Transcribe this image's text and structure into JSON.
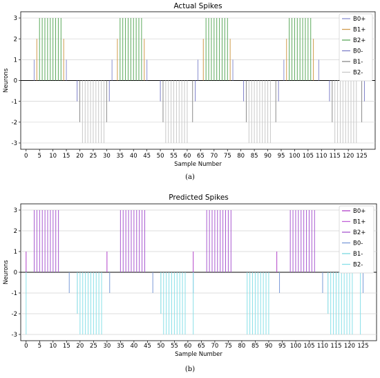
{
  "colors": {
    "B0+": "#8a8fd0",
    "B1+": "#d09a4a",
    "B2+": "#5aa85a",
    "B0-": "#7d7fc8",
    "B1-": "#8a8a8a",
    "B2-": "#c8c8c8",
    "pred_B0+": "#b040c8",
    "pred_B1+": "#c060d8",
    "pred_B2+": "#a858d0",
    "pred_B0-": "#7a9ad8",
    "pred_B1-": "#7ad8e0",
    "pred_B2-": "#88e0e8"
  },
  "chart_data": [
    {
      "type": "event-raster",
      "caption": "(a)",
      "title": "Actual Spikes",
      "xlabel": "Sample Number",
      "ylabel": "Neurons",
      "xlim": [
        -2,
        130
      ],
      "ylim": [
        -3.3,
        3.3
      ],
      "xticks": [
        0,
        5,
        10,
        15,
        20,
        25,
        30,
        35,
        40,
        45,
        50,
        55,
        60,
        65,
        70,
        75,
        80,
        85,
        90,
        95,
        100,
        105,
        110,
        115,
        120,
        125
      ],
      "yticks": [
        3,
        2,
        1,
        0,
        -1,
        -2,
        -3
      ],
      "grid": "horizontal",
      "legend_position": "top-right",
      "series": [
        {
          "name": "B0+",
          "color_key": "B0+",
          "level": 1,
          "times": [
            3,
            15,
            32,
            45,
            64,
            77,
            96,
            109
          ]
        },
        {
          "name": "B1+",
          "color_key": "B1+",
          "level": 2,
          "times": [
            4,
            14,
            34,
            44,
            66,
            76,
            97,
            107
          ]
        },
        {
          "name": "B2+",
          "color_key": "B2+",
          "level": 3,
          "times": [
            5,
            6,
            7,
            8,
            9,
            10,
            11,
            12,
            13,
            35,
            36,
            37,
            38,
            39,
            40,
            41,
            42,
            43,
            67,
            68,
            69,
            70,
            71,
            72,
            73,
            74,
            75,
            98,
            99,
            100,
            101,
            102,
            103,
            104,
            105,
            106
          ]
        },
        {
          "name": "B0-",
          "color_key": "B0-",
          "level": -1,
          "times": [
            19,
            31,
            50,
            63,
            81,
            94,
            113,
            126
          ]
        },
        {
          "name": "B1-",
          "color_key": "B1-",
          "level": -2,
          "times": [
            20,
            30,
            51,
            62,
            82,
            93,
            114,
            125
          ]
        },
        {
          "name": "B2-",
          "color_key": "B2-",
          "level": -3,
          "times": [
            21,
            22,
            23,
            24,
            25,
            26,
            27,
            28,
            29,
            52,
            53,
            54,
            55,
            56,
            57,
            58,
            59,
            60,
            83,
            84,
            85,
            86,
            87,
            88,
            89,
            90,
            91,
            115,
            116,
            117,
            118,
            119,
            120,
            121,
            122,
            123
          ]
        }
      ]
    },
    {
      "type": "event-raster",
      "caption": "(b)",
      "title": "Predicted Spikes",
      "xlabel": "Sample Number",
      "ylabel": "Neurons",
      "xlim": [
        -2,
        130
      ],
      "ylim": [
        -3.3,
        3.3
      ],
      "xticks": [
        0,
        5,
        10,
        15,
        20,
        25,
        30,
        35,
        40,
        45,
        50,
        55,
        60,
        65,
        70,
        75,
        80,
        85,
        90,
        95,
        100,
        105,
        110,
        115,
        120,
        125
      ],
      "yticks": [
        3,
        2,
        1,
        0,
        -1,
        -2,
        -3
      ],
      "grid": "horizontal",
      "legend_position": "top-right",
      "series": [
        {
          "name": "B0+",
          "color_key": "pred_B0+",
          "level": 1,
          "times": [
            0,
            30,
            62,
            93,
            125
          ]
        },
        {
          "name": "B1+",
          "color_key": "pred_B1+",
          "level": 2,
          "times": []
        },
        {
          "name": "B2+",
          "color_key": "pred_B2+",
          "level": 3,
          "times": [
            3,
            4,
            5,
            6,
            7,
            8,
            9,
            10,
            11,
            12,
            35,
            36,
            37,
            38,
            39,
            40,
            41,
            42,
            43,
            44,
            67,
            68,
            69,
            70,
            71,
            72,
            73,
            74,
            75,
            76,
            98,
            99,
            100,
            101,
            102,
            103,
            104,
            105,
            106,
            107
          ]
        },
        {
          "name": "B0-",
          "color_key": "pred_B0-",
          "level": -1,
          "times": [
            16,
            31,
            47,
            62,
            94,
            110,
            125
          ]
        },
        {
          "name": "B1-",
          "color_key": "pred_B1-",
          "level": -2,
          "times": [
            19,
            50,
            112
          ]
        },
        {
          "name": "B2-",
          "color_key": "pred_B2-",
          "level": -3,
          "times": [
            0,
            20,
            21,
            22,
            23,
            24,
            25,
            26,
            27,
            28,
            51,
            52,
            53,
            54,
            55,
            56,
            57,
            58,
            59,
            62,
            82,
            83,
            84,
            85,
            86,
            87,
            88,
            89,
            90,
            113,
            114,
            115,
            116,
            117,
            118,
            119,
            120,
            121,
            124
          ]
        }
      ]
    }
  ]
}
